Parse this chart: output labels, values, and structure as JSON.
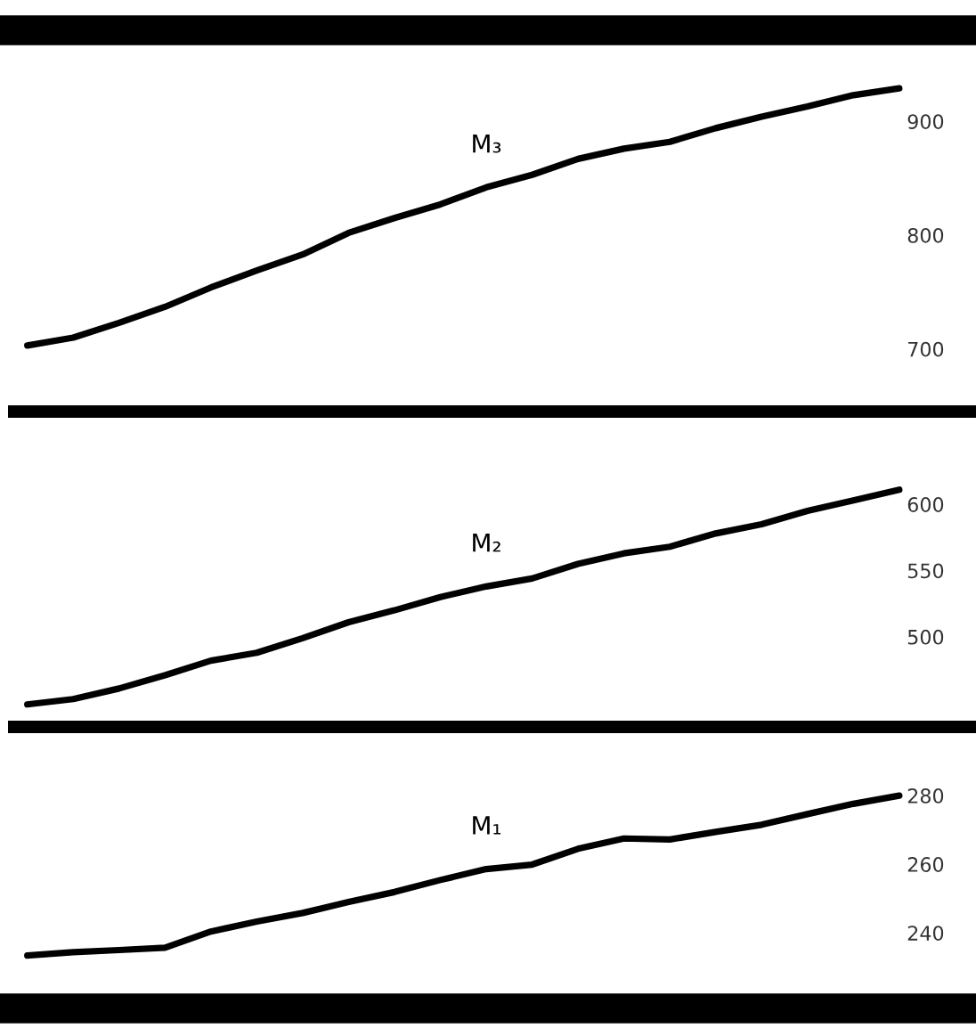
{
  "chart_data": [
    {
      "type": "line",
      "categories": [
        null,
        null,
        null,
        null,
        null,
        null,
        null,
        null,
        null,
        null,
        null,
        null,
        null,
        null,
        null,
        null,
        null,
        null,
        null,
        null
      ],
      "series": [
        {
          "name": "M₃",
          "color": "#000000",
          "values": [
            703,
            710,
            723,
            737,
            754,
            769,
            783,
            802,
            815,
            827,
            842,
            853,
            867,
            876,
            882,
            894,
            904,
            913,
            923,
            929
          ]
        }
      ],
      "ylim": [
        645,
        980
      ],
      "yticks": [
        700,
        800,
        900
      ],
      "tick_labels": "y"
    },
    {
      "type": "line",
      "categories": [
        null,
        null,
        null,
        null,
        null,
        null,
        null,
        null,
        null,
        null,
        null,
        null,
        null,
        null,
        null,
        null,
        null,
        null,
        null,
        null
      ],
      "series": [
        {
          "name": "M₂",
          "color": "#000000",
          "values": [
            449,
            453,
            461,
            471,
            482,
            488,
            499,
            511,
            520,
            530,
            538,
            544,
            555,
            563,
            568,
            578,
            585,
            595,
            603,
            611
          ]
        }
      ],
      "ylim": [
        432,
        670
      ],
      "yticks": [
        500,
        550,
        600
      ],
      "tick_labels": "y"
    },
    {
      "type": "line",
      "categories": [
        null,
        null,
        null,
        null,
        null,
        null,
        null,
        null,
        null,
        null,
        null,
        null,
        null,
        null,
        null,
        null,
        null,
        null,
        null,
        null
      ],
      "series": [
        {
          "name": "M₁",
          "color": "#000000",
          "values": [
            233.4,
            234.4,
            235.0,
            235.7,
            240.4,
            243.3,
            245.8,
            249.0,
            251.9,
            255.4,
            258.6,
            259.9,
            264.5,
            267.5,
            267.2,
            269.4,
            271.5,
            274.6,
            277.6,
            280
          ]
        }
      ],
      "ylim": [
        218,
        300
      ],
      "yticks": [
        240,
        260,
        280
      ],
      "tick_labels": "y"
    }
  ]
}
